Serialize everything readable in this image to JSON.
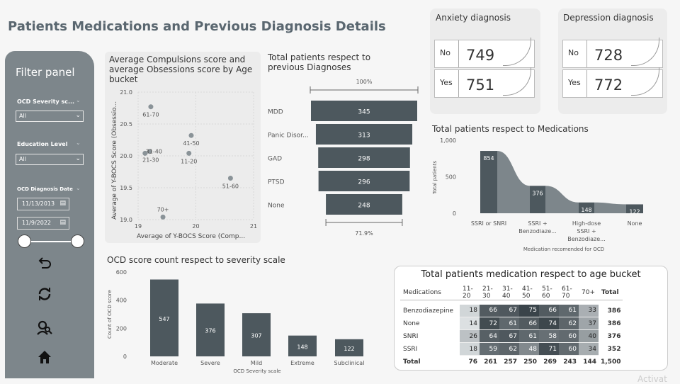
{
  "page": {
    "title": "Patients Medications and Previous Diagnosis Details"
  },
  "filter_panel": {
    "title": "Filter panel",
    "severity_label": "OCD Severity sc...",
    "severity_value": "All",
    "education_label": "Education Level",
    "education_value": "All",
    "date_label": "OCD Diagnosis Date",
    "date_start": "11/13/2013",
    "date_end": "11/9/2022",
    "icons": [
      "undo-icon",
      "refresh-icon",
      "search-people-icon",
      "home-icon"
    ]
  },
  "anxiety": {
    "title": "Anxiety diagnosis",
    "rows": [
      {
        "key": "No",
        "value": "749"
      },
      {
        "key": "Yes",
        "value": "751"
      }
    ]
  },
  "depression": {
    "title": "Depression diagnosis",
    "rows": [
      {
        "key": "No",
        "value": "728"
      },
      {
        "key": "Yes",
        "value": "772"
      }
    ]
  },
  "colors": {
    "dark": "#4d585e",
    "mid": "#7d868b",
    "light": "#a7afb3",
    "panel": "#7d868b"
  },
  "chart_data": [
    {
      "type": "scatter",
      "title": "Average Compulsions score and average Obsessions score by Age bucket",
      "xlabel": "Average of Y-BOCS Score (Comp...",
      "ylabel": "Average of Y-BOCS Score (Obsessio...",
      "xlim": [
        19,
        21
      ],
      "ylim": [
        19.0,
        21.0
      ],
      "xticks": [
        "19",
        "20",
        "21"
      ],
      "yticks": [
        "19.0",
        "19.5",
        "20.0",
        "20.5",
        "21.0"
      ],
      "points": [
        {
          "label": "61-70",
          "x": 19.22,
          "y": 20.77
        },
        {
          "label": "41-50",
          "x": 19.92,
          "y": 20.32
        },
        {
          "label": "31-40",
          "x": 19.2,
          "y": 20.07
        },
        {
          "label": "21-30",
          "x": 19.12,
          "y": 20.04
        },
        {
          "label": "11-20",
          "x": 19.88,
          "y": 20.04
        },
        {
          "label": "51-60",
          "x": 20.6,
          "y": 19.65
        },
        {
          "label": "70+",
          "x": 19.43,
          "y": 19.04
        }
      ]
    },
    {
      "type": "bar",
      "title": "Total patients respect to previous Diagnoses",
      "top_label": "100%",
      "bottom_label": "71.9%",
      "categories": [
        "MDD",
        "Panic Disor...",
        "GAD",
        "PTSD",
        "None"
      ],
      "values": [
        345,
        313,
        298,
        296,
        248
      ]
    },
    {
      "type": "bar",
      "title": "Total patients respect to Medications",
      "xlabel": "Medication recomended for OCD",
      "ylabel": "Total patients",
      "ylim": [
        0,
        1000
      ],
      "yticks": [
        "0",
        "500",
        "1,000"
      ],
      "categories": [
        "SSRI or SNRI",
        "SSRI + Benzodiaze...",
        "High-dose SSRI + Benzodiaze...",
        "None"
      ],
      "values": [
        854,
        376,
        148,
        122
      ]
    },
    {
      "type": "bar",
      "title": "OCD score count respect to severity scale",
      "xlabel": "OCD Severity scale",
      "ylabel": "Count of OCD score",
      "ylim": [
        0,
        600
      ],
      "yticks": [
        "0",
        "200",
        "400",
        "600"
      ],
      "categories": [
        "Moderate",
        "Severe",
        "Mild",
        "Extreme",
        "Subclinical"
      ],
      "values": [
        547,
        376,
        307,
        148,
        122
      ]
    },
    {
      "type": "table",
      "title": "Total patients medication respect to age bucket",
      "columns": [
        "Medications",
        "11-20",
        "21-30",
        "31-40",
        "41-50",
        "51-60",
        "61-70",
        "70+",
        "Total"
      ],
      "rows": [
        {
          "label": "Benzodiazepine",
          "values": [
            18,
            66,
            67,
            75,
            66,
            61,
            33
          ],
          "total": 386
        },
        {
          "label": "None",
          "values": [
            14,
            72,
            61,
            66,
            74,
            62,
            37
          ],
          "total": 386
        },
        {
          "label": "SNRI",
          "values": [
            26,
            64,
            67,
            61,
            58,
            60,
            40
          ],
          "total": 376
        },
        {
          "label": "SSRI",
          "values": [
            18,
            59,
            62,
            48,
            71,
            60,
            34
          ],
          "total": 352
        }
      ],
      "total_row": {
        "label": "Total",
        "values": [
          76,
          261,
          257,
          250,
          269,
          243,
          144
        ],
        "total": "1,500"
      }
    }
  ],
  "watermark": "Activat"
}
